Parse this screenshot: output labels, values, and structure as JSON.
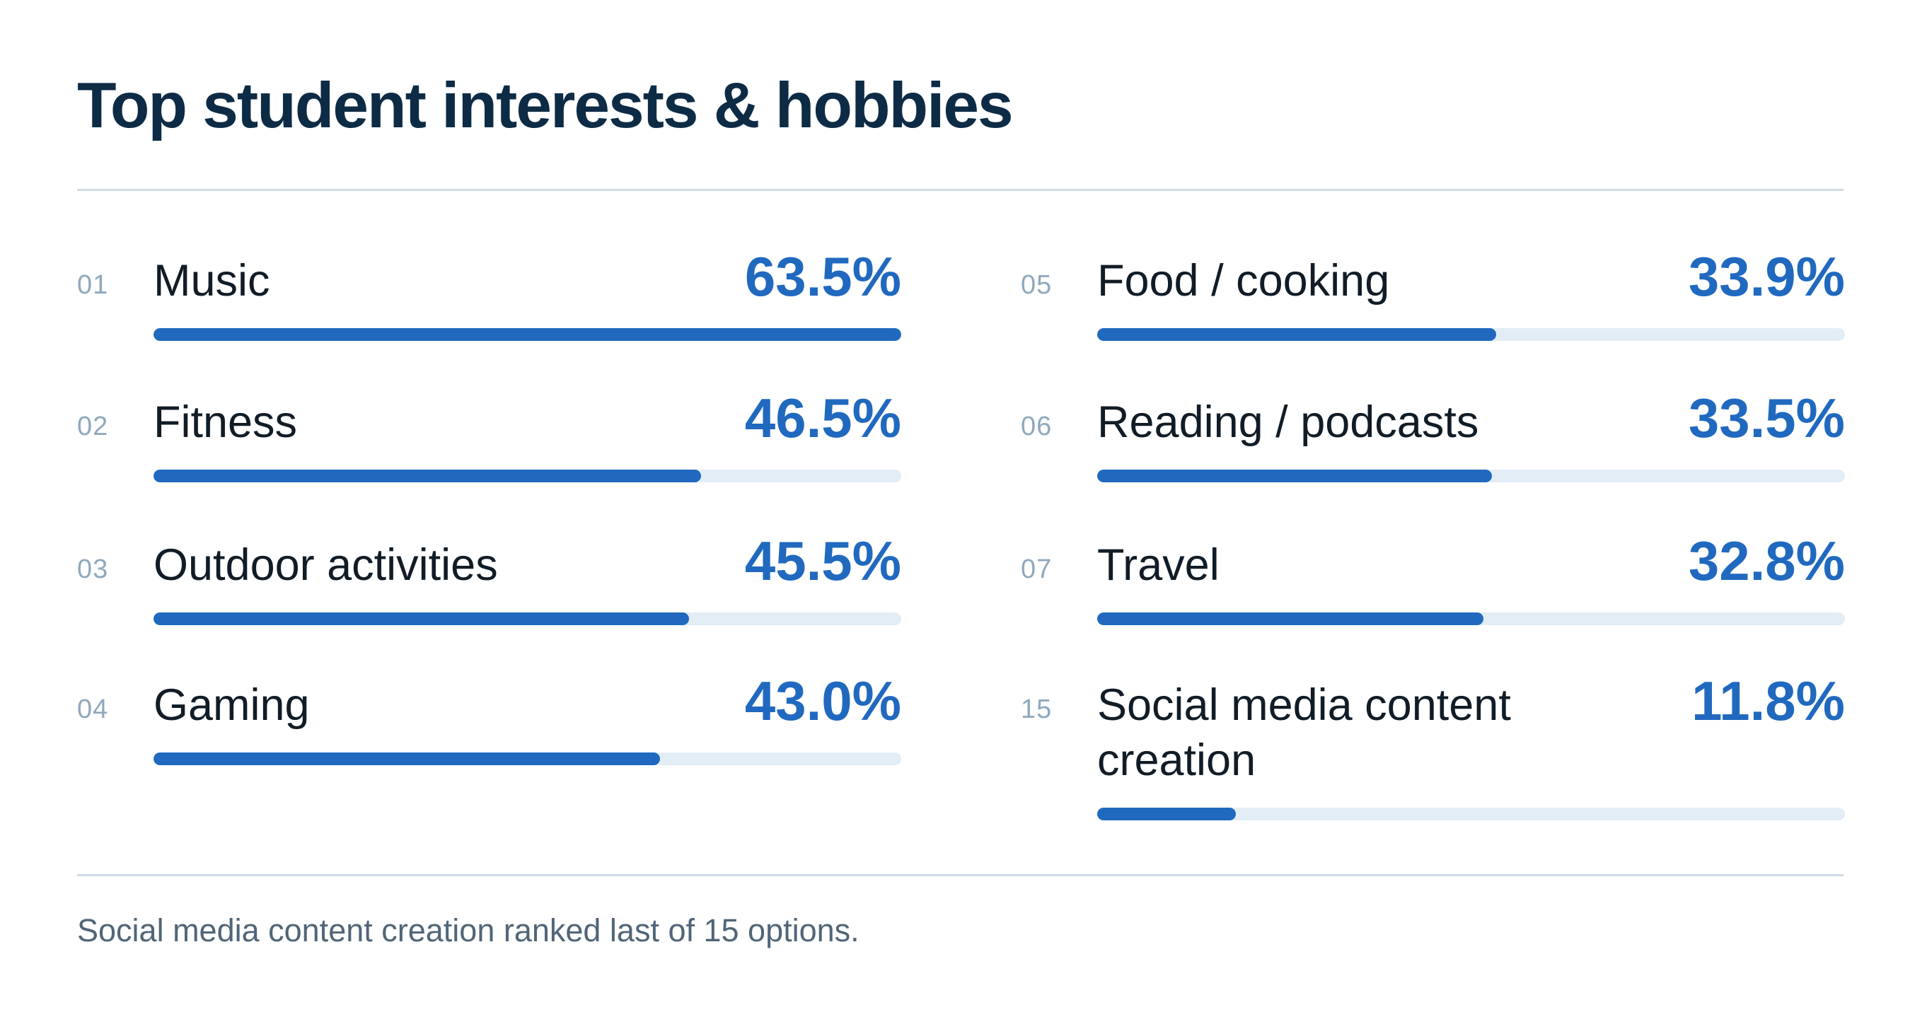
{
  "title": "Top student interests & hobbies",
  "footnote": "Social media content creation ranked last of 15 options.",
  "colors": {
    "title": "#0d2b45",
    "accent": "#2069bf",
    "track": "#e3edf6",
    "rank": "#8fa8bd",
    "divider": "#cfdbe6",
    "footnote": "#516578"
  },
  "chart_data": {
    "type": "bar",
    "title": "Top student interests & hobbies",
    "value_unit": "%",
    "xlim": [
      0,
      63.5
    ],
    "items": [
      {
        "rank": "01",
        "label": "Music",
        "value": 63.5,
        "display": "63.5%"
      },
      {
        "rank": "02",
        "label": "Fitness",
        "value": 46.5,
        "display": "46.5%"
      },
      {
        "rank": "03",
        "label": "Outdoor activities",
        "value": 45.5,
        "display": "45.5%"
      },
      {
        "rank": "04",
        "label": "Gaming",
        "value": 43.0,
        "display": "43.0%"
      },
      {
        "rank": "05",
        "label": "Food / cooking",
        "value": 33.9,
        "display": "33.9%"
      },
      {
        "rank": "06",
        "label": "Reading / podcasts",
        "value": 33.5,
        "display": "33.5%"
      },
      {
        "rank": "07",
        "label": "Travel",
        "value": 32.8,
        "display": "32.8%"
      },
      {
        "rank": "15",
        "label": "Social media content creation",
        "value": 11.8,
        "display": "11.8%"
      }
    ],
    "annotation": "Social media content creation ranked last of 15 options."
  }
}
